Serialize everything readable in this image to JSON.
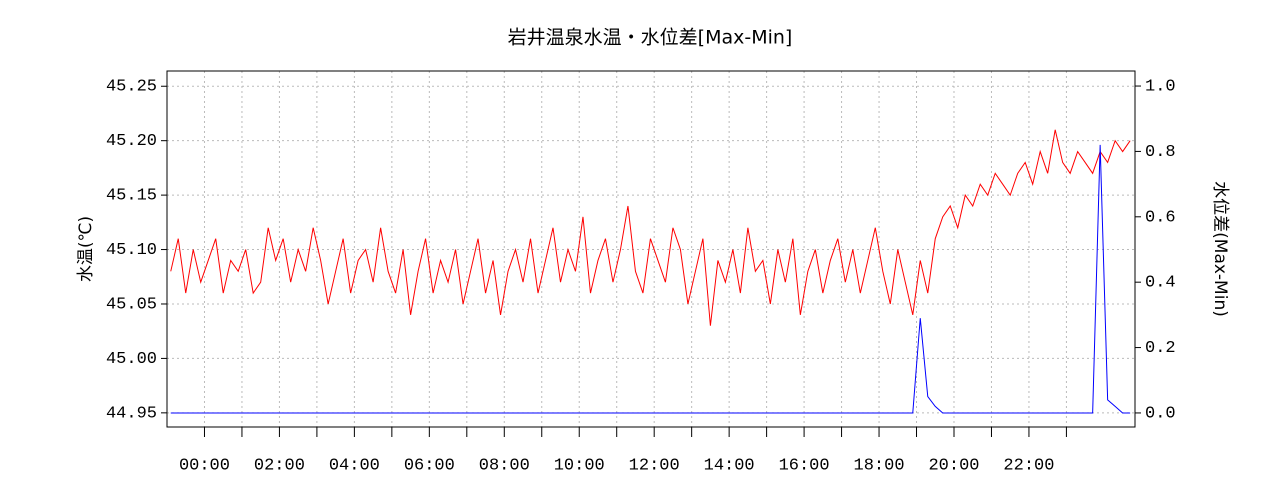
{
  "chart_data": {
    "type": "line",
    "title": "岩井温泉水温・水位差[Max-Min]",
    "ylabel": "水温(℃)",
    "y2label": "水位差(Max-Min)",
    "x": [
      -0.9,
      -0.7,
      -0.5,
      -0.3,
      -0.1,
      0.1,
      0.3,
      0.5,
      0.7,
      0.9,
      1.1,
      1.3,
      1.5,
      1.7,
      1.9,
      2.1,
      2.3,
      2.5,
      2.7,
      2.9,
      3.1,
      3.3,
      3.5,
      3.7,
      3.9,
      4.1,
      4.3,
      4.5,
      4.7,
      4.9,
      5.1,
      5.3,
      5.5,
      5.7,
      5.9,
      6.1,
      6.3,
      6.5,
      6.7,
      6.9,
      7.1,
      7.3,
      7.5,
      7.7,
      7.9,
      8.1,
      8.3,
      8.5,
      8.7,
      8.9,
      9.1,
      9.3,
      9.5,
      9.7,
      9.9,
      10.1,
      10.3,
      10.5,
      10.7,
      10.9,
      11.1,
      11.3,
      11.5,
      11.7,
      11.9,
      12.1,
      12.3,
      12.5,
      12.7,
      12.9,
      13.1,
      13.3,
      13.5,
      13.7,
      13.9,
      14.1,
      14.3,
      14.5,
      14.7,
      14.9,
      15.1,
      15.3,
      15.5,
      15.7,
      15.9,
      16.1,
      16.3,
      16.5,
      16.7,
      16.9,
      17.1,
      17.3,
      17.5,
      17.7,
      17.9,
      18.1,
      18.3,
      18.5,
      18.7,
      18.9,
      19.1,
      19.3,
      19.5,
      19.7,
      19.9,
      20.1,
      20.3,
      20.5,
      20.7,
      20.9,
      21.1,
      21.3,
      21.5,
      21.7,
      21.9,
      22.1,
      22.3,
      22.5,
      22.7,
      22.9,
      23.1,
      23.3,
      23.5,
      23.7,
      23.9,
      24.1,
      24.3,
      24.5,
      24.7
    ],
    "series": [
      {
        "name": "水温",
        "color": "#ff0000",
        "values": [
          45.08,
          45.11,
          45.06,
          45.1,
          45.07,
          45.09,
          45.11,
          45.06,
          45.09,
          45.08,
          45.1,
          45.06,
          45.07,
          45.12,
          45.09,
          45.11,
          45.07,
          45.1,
          45.08,
          45.12,
          45.09,
          45.05,
          45.08,
          45.11,
          45.06,
          45.09,
          45.1,
          45.07,
          45.12,
          45.08,
          45.06,
          45.1,
          45.04,
          45.08,
          45.11,
          45.06,
          45.09,
          45.07,
          45.1,
          45.05,
          45.08,
          45.11,
          45.06,
          45.09,
          45.04,
          45.08,
          45.1,
          45.07,
          45.11,
          45.06,
          45.09,
          45.12,
          45.07,
          45.1,
          45.08,
          45.13,
          45.06,
          45.09,
          45.11,
          45.07,
          45.1,
          45.14,
          45.08,
          45.06,
          45.11,
          45.09,
          45.07,
          45.12,
          45.1,
          45.05,
          45.08,
          45.11,
          45.03,
          45.09,
          45.07,
          45.1,
          45.06,
          45.12,
          45.08,
          45.09,
          45.05,
          45.1,
          45.07,
          45.11,
          45.04,
          45.08,
          45.1,
          45.06,
          45.09,
          45.11,
          45.07,
          45.1,
          45.06,
          45.09,
          45.12,
          45.08,
          45.05,
          45.1,
          45.07,
          45.04,
          45.09,
          45.06,
          45.11,
          45.13,
          45.14,
          45.12,
          45.15,
          45.14,
          45.16,
          45.15,
          45.17,
          45.16,
          45.15,
          45.17,
          45.18,
          45.16,
          45.19,
          45.17,
          45.21,
          45.18,
          45.17,
          45.19,
          45.18,
          45.17,
          45.19,
          45.18,
          45.2,
          45.19,
          45.2
        ]
      },
      {
        "name": "水位差",
        "color": "#0000ff",
        "axis": "y2",
        "values": [
          0,
          0,
          0,
          0,
          0,
          0,
          0,
          0,
          0,
          0,
          0,
          0,
          0,
          0,
          0,
          0,
          0,
          0,
          0,
          0,
          0,
          0,
          0,
          0,
          0,
          0,
          0,
          0,
          0,
          0,
          0,
          0,
          0,
          0,
          0,
          0,
          0,
          0,
          0,
          0,
          0,
          0,
          0,
          0,
          0,
          0,
          0,
          0,
          0,
          0,
          0,
          0,
          0,
          0,
          0,
          0,
          0,
          0,
          0,
          0,
          0,
          0,
          0,
          0,
          0,
          0,
          0,
          0,
          0,
          0,
          0,
          0,
          0,
          0,
          0,
          0,
          0,
          0,
          0,
          0,
          0,
          0,
          0,
          0,
          0,
          0,
          0,
          0,
          0,
          0,
          0,
          0,
          0,
          0,
          0,
          0,
          0,
          0,
          0,
          0,
          0.29,
          0.05,
          0.02,
          0,
          0,
          0,
          0,
          0,
          0,
          0,
          0,
          0,
          0,
          0,
          0,
          0,
          0,
          0,
          0,
          0,
          0,
          0,
          0,
          0,
          0.82,
          0.04,
          0.02,
          0,
          0
        ]
      }
    ],
    "xlim": [
      -1,
      24.83
    ],
    "xticks": [
      {
        "value": 0,
        "label": "00:00"
      },
      {
        "value": 2,
        "label": "02:00"
      },
      {
        "value": 4,
        "label": "04:00"
      },
      {
        "value": 6,
        "label": "06:00"
      },
      {
        "value": 8,
        "label": "08:00"
      },
      {
        "value": 10,
        "label": "10:00"
      },
      {
        "value": 12,
        "label": "12:00"
      },
      {
        "value": 14,
        "label": "14:00"
      },
      {
        "value": 16,
        "label": "16:00"
      },
      {
        "value": 18,
        "label": "18:00"
      },
      {
        "value": 20,
        "label": "20:00"
      },
      {
        "value": 22,
        "label": "22:00"
      }
    ],
    "xminorticks": [
      1,
      3,
      5,
      7,
      9,
      11,
      13,
      15,
      17,
      19,
      21,
      23
    ],
    "ylim": [
      44.937,
      45.264
    ],
    "yticks": [
      44.95,
      {
        "value": 45.0,
        "label": "45.00"
      },
      45.05,
      {
        "value": 45.1,
        "label": "45.10"
      },
      45.15,
      {
        "value": 45.2,
        "label": "45.20"
      },
      45.25
    ],
    "y2lim": [
      -0.043,
      1.046
    ],
    "y2ticks": [
      {
        "value": 0,
        "label": "0.0"
      },
      0.2,
      0.4,
      0.6,
      0.8,
      {
        "value": 1,
        "label": "1.0"
      }
    ],
    "grid": true
  }
}
